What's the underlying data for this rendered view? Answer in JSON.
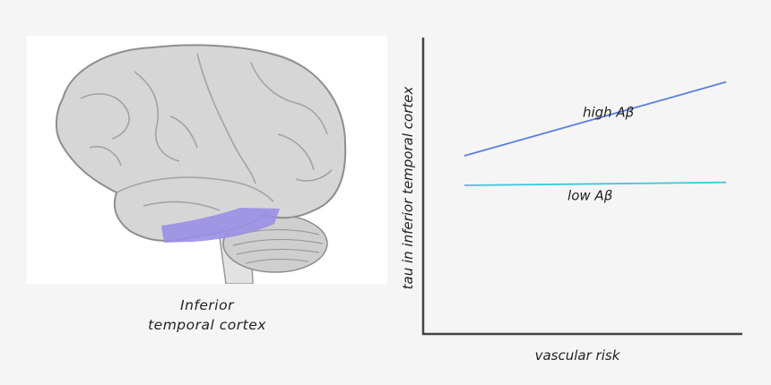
{
  "brain": {
    "caption_line1": "Inferior",
    "caption_line2": "temporal cortex",
    "highlight_color": "#9a8fe6"
  },
  "chart_data": {
    "type": "line",
    "xlabel": "vascular risk",
    "ylabel": "tau in inferior temporal cortex",
    "grid": false,
    "series": [
      {
        "name": "high Aβ",
        "color": "#5b7fe0",
        "x": [
          0,
          1
        ],
        "y": [
          0.6,
          0.85
        ]
      },
      {
        "name": "low Aβ",
        "color": "#3ec8d8",
        "x": [
          0,
          1
        ],
        "y": [
          0.5,
          0.51
        ]
      }
    ]
  }
}
